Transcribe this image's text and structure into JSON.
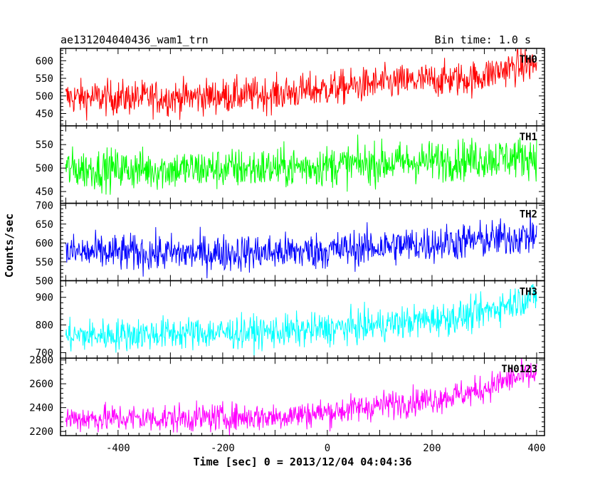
{
  "header": {
    "title": "ae131204040436_wam1_trn",
    "bin_time": "Bin time: 1.0 s"
  },
  "chart_data": {
    "type": "line",
    "title": "ae131204040436_wam1_trn",
    "subtitle": "Bin time: 1.0 s",
    "xlabel": "Time [sec] 0 = 2013/12/04 04:04:36",
    "ylabel": "Counts/sec",
    "xlim": [
      -510,
      415
    ],
    "x_ticks": [
      -400,
      -200,
      0,
      200,
      400
    ],
    "x_range_data": [
      -500,
      400
    ],
    "bin_time_s": 1.0,
    "panels": [
      {
        "name": "TH0",
        "color": "#ff0000",
        "ylim": [
          415,
          635
        ],
        "y_ticks": [
          450,
          500,
          550,
          600
        ],
        "trend": [
          [
            -500,
            495
          ],
          [
            -300,
            495
          ],
          [
            -100,
            505
          ],
          [
            0,
            520
          ],
          [
            100,
            535
          ],
          [
            200,
            545
          ],
          [
            280,
            550
          ],
          [
            350,
            580
          ],
          [
            400,
            590
          ]
        ],
        "noise": 25
      },
      {
        "name": "TH1",
        "color": "#00ff00",
        "ylim": [
          425,
          590
        ],
        "y_ticks": [
          450,
          500,
          550
        ],
        "trend": [
          [
            -500,
            498
          ],
          [
            -300,
            497
          ],
          [
            -100,
            500
          ],
          [
            0,
            505
          ],
          [
            100,
            510
          ],
          [
            200,
            515
          ],
          [
            300,
            520
          ],
          [
            400,
            525
          ]
        ],
        "noise": 22
      },
      {
        "name": "TH2",
        "color": "#0000ff",
        "ylim": [
          500,
          705
        ],
        "y_ticks": [
          500,
          550,
          600,
          650,
          700
        ],
        "trend": [
          [
            -500,
            575
          ],
          [
            -300,
            572
          ],
          [
            -100,
            575
          ],
          [
            0,
            580
          ],
          [
            100,
            590
          ],
          [
            200,
            598
          ],
          [
            300,
            608
          ],
          [
            400,
            620
          ]
        ],
        "noise": 25
      },
      {
        "name": "TH3",
        "color": "#00ffff",
        "ylim": [
          680,
          960
        ],
        "y_ticks": [
          700,
          800,
          900
        ],
        "trend": [
          [
            -500,
            760
          ],
          [
            -300,
            770
          ],
          [
            -100,
            775
          ],
          [
            0,
            785
          ],
          [
            100,
            800
          ],
          [
            200,
            820
          ],
          [
            280,
            835
          ],
          [
            350,
            880
          ],
          [
            400,
            905
          ]
        ],
        "noise": 30
      },
      {
        "name": "TH0123",
        "color": "#ff00ff",
        "ylim": [
          2165,
          2815
        ],
        "y_ticks": [
          2200,
          2400,
          2600,
          2800
        ],
        "trend": [
          [
            -500,
            2310
          ],
          [
            -300,
            2310
          ],
          [
            -100,
            2325
          ],
          [
            0,
            2360
          ],
          [
            100,
            2420
          ],
          [
            200,
            2470
          ],
          [
            280,
            2530
          ],
          [
            350,
            2640
          ],
          [
            400,
            2680
          ]
        ],
        "noise": 60
      }
    ]
  }
}
